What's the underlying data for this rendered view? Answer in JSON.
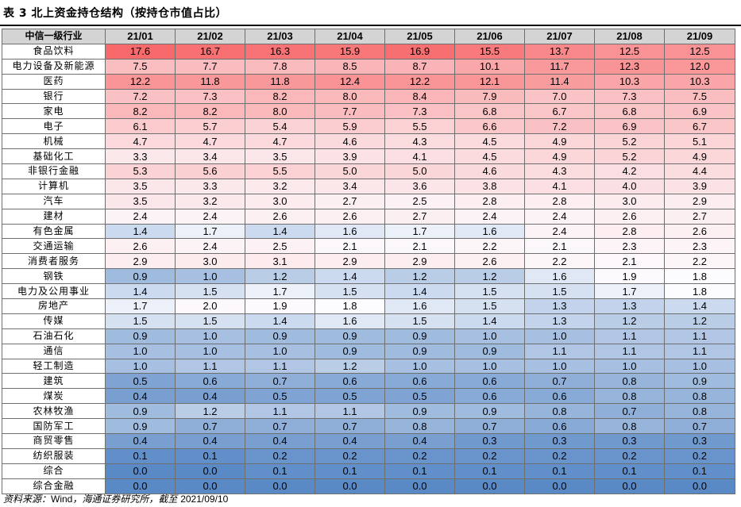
{
  "title": "表 3 北上资金持仓结构（按持仓市值占比）",
  "table": {
    "header_label": "中信一级行业",
    "columns": [
      "21/01",
      "21/02",
      "21/03",
      "21/04",
      "21/05",
      "21/06",
      "21/07",
      "21/08",
      "21/09"
    ],
    "rows": [
      {
        "industry": "食品饮料",
        "values": [
          "17.6",
          "16.7",
          "16.3",
          "15.9",
          "16.9",
          "15.5",
          "13.7",
          "12.5",
          "12.5"
        ]
      },
      {
        "industry": "电力设备及新能源",
        "values": [
          "7.5",
          "7.7",
          "7.8",
          "8.5",
          "8.7",
          "10.1",
          "11.7",
          "12.3",
          "12.0"
        ]
      },
      {
        "industry": "医药",
        "values": [
          "12.2",
          "11.8",
          "11.8",
          "12.4",
          "12.2",
          "12.1",
          "11.4",
          "10.3",
          "10.3"
        ]
      },
      {
        "industry": "银行",
        "values": [
          "7.2",
          "7.3",
          "8.2",
          "8.0",
          "8.4",
          "7.9",
          "7.0",
          "7.3",
          "7.5"
        ]
      },
      {
        "industry": "家电",
        "values": [
          "8.2",
          "8.2",
          "8.0",
          "7.7",
          "7.3",
          "6.8",
          "6.7",
          "6.8",
          "6.9"
        ]
      },
      {
        "industry": "电子",
        "values": [
          "6.1",
          "5.7",
          "5.4",
          "5.9",
          "5.5",
          "6.6",
          "7.2",
          "6.9",
          "6.7"
        ]
      },
      {
        "industry": "机械",
        "values": [
          "4.7",
          "4.7",
          "4.7",
          "4.6",
          "4.3",
          "4.5",
          "4.9",
          "5.2",
          "5.1"
        ]
      },
      {
        "industry": "基础化工",
        "values": [
          "3.3",
          "3.4",
          "3.5",
          "3.9",
          "4.1",
          "4.5",
          "4.9",
          "5.2",
          "4.9"
        ]
      },
      {
        "industry": "非银行金融",
        "values": [
          "5.3",
          "5.6",
          "5.5",
          "5.0",
          "5.0",
          "4.6",
          "4.3",
          "4.2",
          "4.4"
        ]
      },
      {
        "industry": "计算机",
        "values": [
          "3.5",
          "3.3",
          "3.2",
          "3.4",
          "3.6",
          "3.8",
          "4.1",
          "4.0",
          "3.9"
        ]
      },
      {
        "industry": "汽车",
        "values": [
          "3.5",
          "3.2",
          "3.0",
          "2.7",
          "2.5",
          "2.8",
          "2.8",
          "3.0",
          "2.9"
        ]
      },
      {
        "industry": "建材",
        "values": [
          "2.4",
          "2.4",
          "2.6",
          "2.6",
          "2.7",
          "2.4",
          "2.4",
          "2.6",
          "2.7"
        ]
      },
      {
        "industry": "有色金属",
        "values": [
          "1.4",
          "1.7",
          "1.4",
          "1.6",
          "1.7",
          "1.6",
          "2.4",
          "2.8",
          "2.6"
        ]
      },
      {
        "industry": "交通运输",
        "values": [
          "2.6",
          "2.4",
          "2.5",
          "2.1",
          "2.1",
          "2.2",
          "2.1",
          "2.3",
          "2.3"
        ]
      },
      {
        "industry": "消费者服务",
        "values": [
          "2.9",
          "3.0",
          "3.1",
          "2.9",
          "2.9",
          "2.6",
          "2.2",
          "2.1",
          "2.2"
        ]
      },
      {
        "industry": "钢铁",
        "values": [
          "0.9",
          "1.0",
          "1.2",
          "1.4",
          "1.2",
          "1.2",
          "1.6",
          "1.9",
          "1.8"
        ]
      },
      {
        "industry": "电力及公用事业",
        "values": [
          "1.4",
          "1.5",
          "1.7",
          "1.5",
          "1.4",
          "1.5",
          "1.5",
          "1.7",
          "1.8"
        ]
      },
      {
        "industry": "房地产",
        "values": [
          "1.7",
          "2.0",
          "1.9",
          "1.8",
          "1.6",
          "1.5",
          "1.3",
          "1.3",
          "1.4"
        ]
      },
      {
        "industry": "传媒",
        "values": [
          "1.5",
          "1.5",
          "1.4",
          "1.6",
          "1.5",
          "1.4",
          "1.3",
          "1.2",
          "1.2"
        ]
      },
      {
        "industry": "石油石化",
        "values": [
          "0.9",
          "1.0",
          "0.9",
          "0.9",
          "0.9",
          "1.0",
          "1.0",
          "1.1",
          "1.1"
        ]
      },
      {
        "industry": "通信",
        "values": [
          "1.0",
          "1.0",
          "1.0",
          "0.9",
          "0.9",
          "0.9",
          "1.1",
          "1.1",
          "1.1"
        ]
      },
      {
        "industry": "轻工制造",
        "values": [
          "1.0",
          "1.1",
          "1.1",
          "1.2",
          "1.0",
          "1.0",
          "1.0",
          "1.0",
          "1.0"
        ]
      },
      {
        "industry": "建筑",
        "values": [
          "0.5",
          "0.6",
          "0.7",
          "0.6",
          "0.6",
          "0.6",
          "0.7",
          "0.8",
          "0.9"
        ]
      },
      {
        "industry": "煤炭",
        "values": [
          "0.4",
          "0.4",
          "0.5",
          "0.5",
          "0.5",
          "0.6",
          "0.6",
          "0.8",
          "0.8"
        ]
      },
      {
        "industry": "农林牧渔",
        "values": [
          "0.9",
          "1.2",
          "1.1",
          "1.1",
          "0.9",
          "0.9",
          "0.8",
          "0.7",
          "0.8"
        ]
      },
      {
        "industry": "国防军工",
        "values": [
          "0.9",
          "0.7",
          "0.7",
          "0.7",
          "0.8",
          "0.7",
          "0.6",
          "0.8",
          "0.7"
        ]
      },
      {
        "industry": "商贸零售",
        "values": [
          "0.4",
          "0.4",
          "0.4",
          "0.4",
          "0.4",
          "0.3",
          "0.3",
          "0.3",
          "0.3"
        ]
      },
      {
        "industry": "纺织服装",
        "values": [
          "0.1",
          "0.1",
          "0.2",
          "0.2",
          "0.2",
          "0.2",
          "0.2",
          "0.2",
          "0.2"
        ]
      },
      {
        "industry": "综合",
        "values": [
          "0.0",
          "0.0",
          "0.1",
          "0.1",
          "0.1",
          "0.1",
          "0.1",
          "0.1",
          "0.1"
        ]
      },
      {
        "industry": "综合金融",
        "values": [
          "0.0",
          "0.0",
          "0.0",
          "0.0",
          "0.0",
          "0.0",
          "0.0",
          "0.0",
          "0.0"
        ]
      }
    ]
  },
  "colors": {
    "high": "#f8696b",
    "mid": "#fcfcff",
    "low": "#5a8ac6",
    "header_bg": "#d4d4d4"
  },
  "source": {
    "prefix": "资料来源：",
    "wind": "Wind",
    "middle": "，海通证券研究所，截至 ",
    "date": "2021/09/10"
  }
}
